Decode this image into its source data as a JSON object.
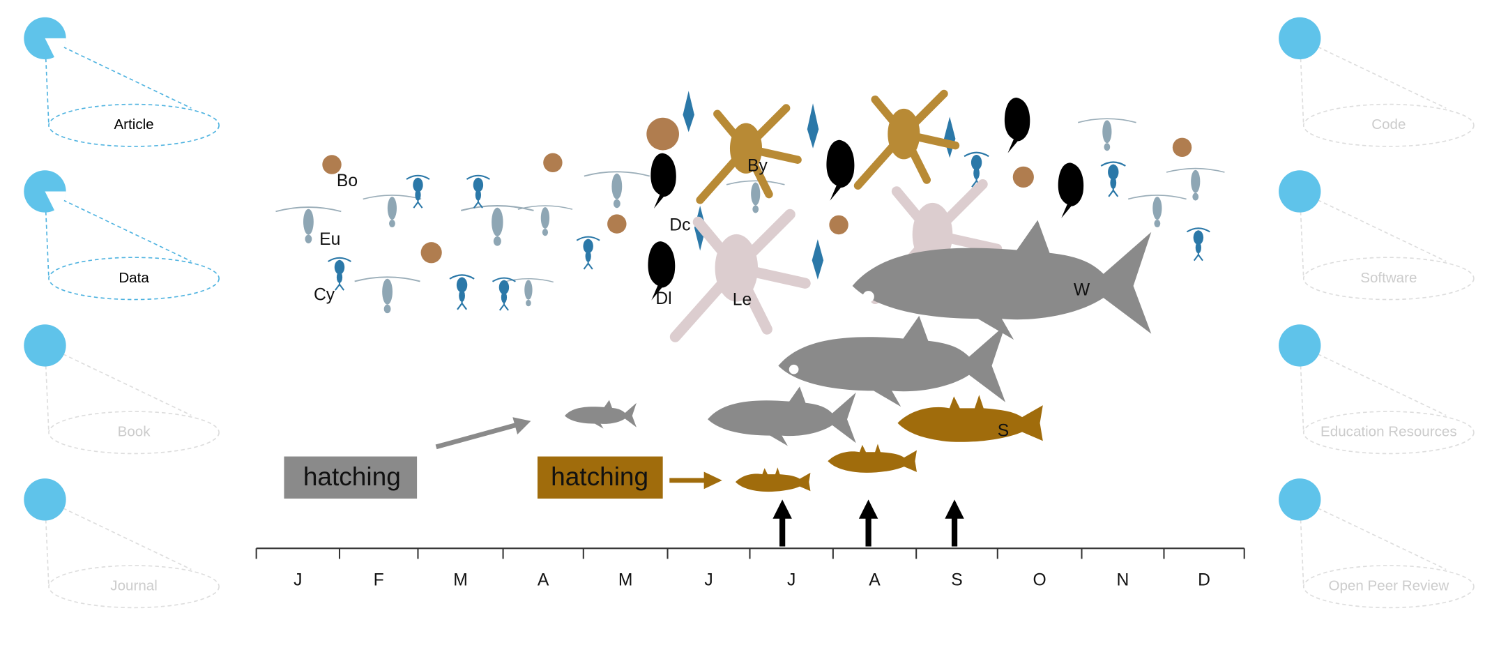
{
  "nav": {
    "left": [
      "Article",
      "Data",
      "Book",
      "Journal"
    ],
    "right": [
      "Code",
      "Software",
      "Education Resources",
      "Open Peer Review"
    ]
  },
  "organisms": {
    "bo": "Bo",
    "eu": "Eu",
    "cy": "Cy",
    "dc": "Dc",
    "dl": "Dl",
    "le": "Le",
    "by": "By",
    "w": "W",
    "s": "S"
  },
  "hatching": [
    "hatching",
    "hatching"
  ],
  "months": [
    "J",
    "F",
    "M",
    "A",
    "M",
    "J",
    "J",
    "A",
    "S",
    "O",
    "N",
    "D"
  ]
}
